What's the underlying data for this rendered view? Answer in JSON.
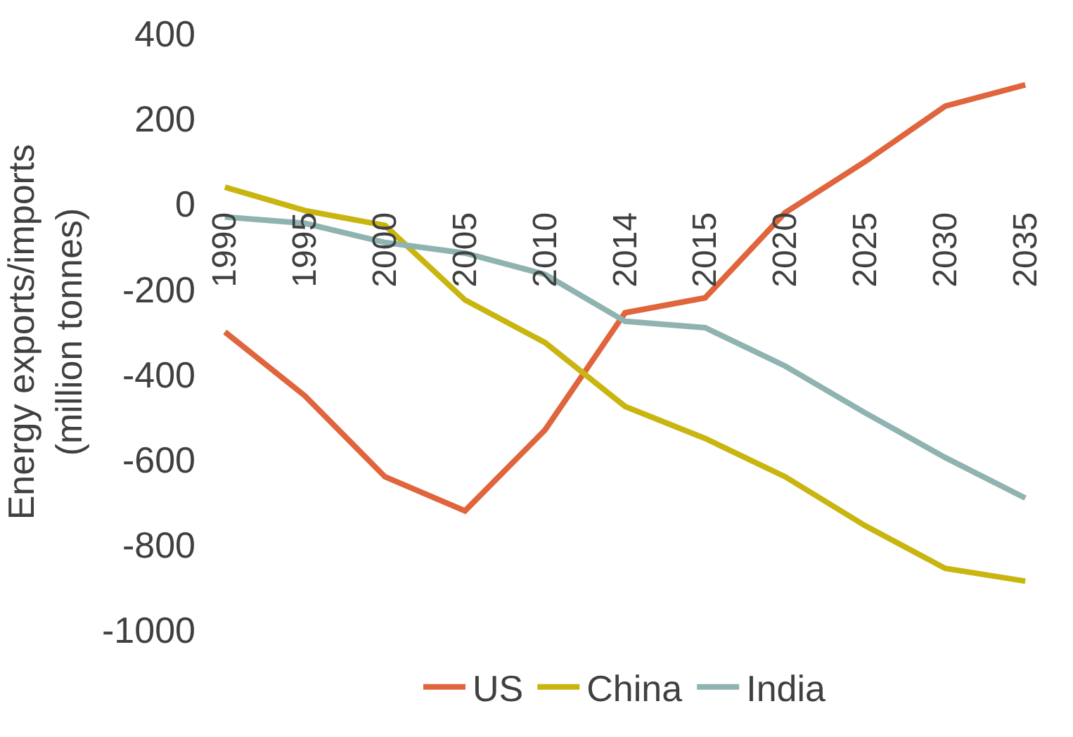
{
  "chart_data": {
    "type": "line",
    "ylabel": "Energy exports/imports\n(million tonnes)",
    "categories": [
      "1990",
      "1995",
      "2000",
      "2005",
      "2010",
      "2014",
      "2015",
      "2020",
      "2025",
      "2030",
      "2035"
    ],
    "series": [
      {
        "name": "US",
        "color": "#e0643c",
        "values": [
          -300,
          -450,
          -640,
          -720,
          -530,
          -255,
          -220,
          -20,
          100,
          230,
          280
        ]
      },
      {
        "name": "China",
        "color": "#c9b50f",
        "values": [
          40,
          -15,
          -50,
          -225,
          -325,
          -475,
          -550,
          -640,
          -755,
          -855,
          -885
        ]
      },
      {
        "name": "India",
        "color": "#8fb3b0",
        "values": [
          -30,
          -45,
          -90,
          -115,
          -165,
          -275,
          -290,
          -380,
          -490,
          -595,
          -690
        ]
      }
    ],
    "ylim": [
      -1000,
      400
    ],
    "yticks": [
      -1000,
      -800,
      -600,
      -400,
      -200,
      0,
      200,
      400
    ],
    "grid": false,
    "legend": "bottom",
    "marker": "none",
    "line_style": "solid"
  }
}
